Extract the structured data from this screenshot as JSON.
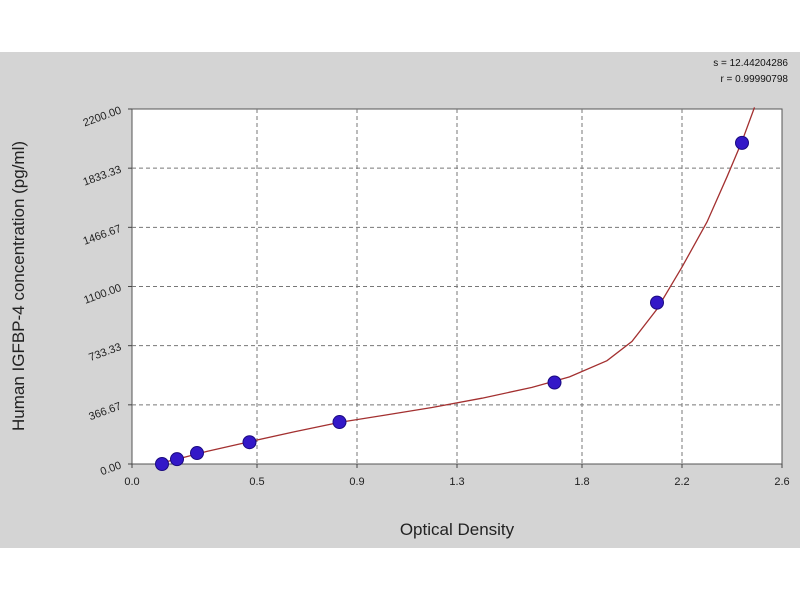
{
  "chart_data": {
    "type": "scatter",
    "xlabel": "Optical Density",
    "ylabel": "Human IGFBP-4 concentration (pg/ml)",
    "xlim": [
      0.0,
      2.6
    ],
    "ylim": [
      0.0,
      2200.0
    ],
    "x_ticks": [
      0.0,
      0.5,
      0.9,
      1.3,
      1.8,
      2.2,
      2.6
    ],
    "x_tick_labels": [
      "0.0",
      "0.5",
      "0.9",
      "1.3",
      "1.8",
      "2.2",
      "2.6"
    ],
    "y_ticks": [
      0,
      366.67,
      733.33,
      1100,
      1466.67,
      1833.33,
      2200
    ],
    "y_tick_labels": [
      "0.00",
      "366.67",
      "733.33",
      "1100.00",
      "1466.67",
      "1833.33",
      "2200.00"
    ],
    "grid": true,
    "series": [
      {
        "marker_color": "#3318c8",
        "points": [
          {
            "x": 0.12,
            "y": 0
          },
          {
            "x": 0.18,
            "y": 30
          },
          {
            "x": 0.26,
            "y": 68
          },
          {
            "x": 0.47,
            "y": 135
          },
          {
            "x": 0.83,
            "y": 260
          },
          {
            "x": 1.69,
            "y": 505
          },
          {
            "x": 2.1,
            "y": 1000
          },
          {
            "x": 2.44,
            "y": 1990
          }
        ]
      }
    ],
    "fit_curve": {
      "color": "#a33030",
      "points": [
        {
          "x": 0.12,
          "y": 8
        },
        {
          "x": 0.2,
          "y": 38
        },
        {
          "x": 0.3,
          "y": 78
        },
        {
          "x": 0.47,
          "y": 138
        },
        {
          "x": 0.65,
          "y": 200
        },
        {
          "x": 0.83,
          "y": 258
        },
        {
          "x": 1.0,
          "y": 300
        },
        {
          "x": 1.2,
          "y": 350
        },
        {
          "x": 1.4,
          "y": 408
        },
        {
          "x": 1.6,
          "y": 475
        },
        {
          "x": 1.75,
          "y": 540
        },
        {
          "x": 1.9,
          "y": 640
        },
        {
          "x": 2.0,
          "y": 760
        },
        {
          "x": 2.1,
          "y": 960
        },
        {
          "x": 2.2,
          "y": 1220
        },
        {
          "x": 2.3,
          "y": 1500
        },
        {
          "x": 2.38,
          "y": 1780
        },
        {
          "x": 2.44,
          "y": 2000
        },
        {
          "x": 2.49,
          "y": 2210
        }
      ]
    },
    "annotations": {
      "s_text": "s = 12.44204286",
      "r_text": "r = 0.99990798"
    }
  }
}
